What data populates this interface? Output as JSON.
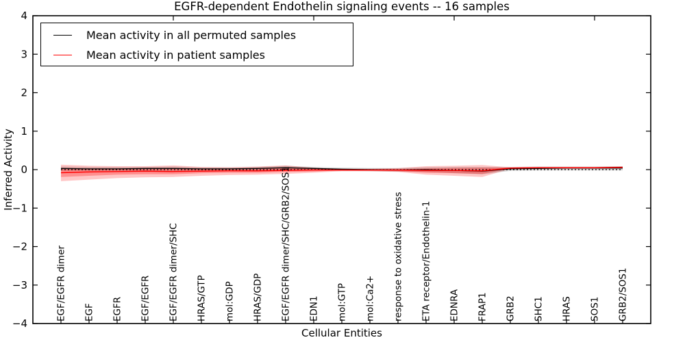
{
  "figure": {
    "title": "EGFR-dependent Endothelin signaling events -- 16 samples",
    "xlabel": "Cellular Entities",
    "ylabel": "Inferred Activity"
  },
  "legend": {
    "entries": [
      {
        "label": "Mean activity in all permuted samples",
        "color": "#000000"
      },
      {
        "label": "Mean activity in patient samples",
        "color": "#ff0000"
      }
    ]
  },
  "chart_data": {
    "type": "line",
    "title": "EGFR-dependent Endothelin signaling events -- 16 samples",
    "xlabel": "Cellular Entities",
    "ylabel": "Inferred Activity",
    "ylim": [
      -4,
      4
    ],
    "ytick_labels": [
      "4",
      "3",
      "2",
      "1",
      "0",
      "−1",
      "−2",
      "−3",
      "−4"
    ],
    "ytick_values": [
      4,
      3,
      2,
      1,
      0,
      -1,
      -2,
      -3,
      -4
    ],
    "grid": false,
    "legend_position": "upper left",
    "zero_line": {
      "style": "dotted",
      "color": "#000000",
      "y": 0
    },
    "top_axis_tick_positions": [
      4,
      9,
      14,
      19
    ],
    "categories": [
      "EGF/EGFR dimer",
      "EGF",
      "EGFR",
      "EGF/EGFR",
      "EGF/EGFR dimer/SHC",
      "HRAS/GTP",
      "mol:GDP",
      "HRAS/GDP",
      "EGF/EGFR dimer/SHC/GRB2/SOS1",
      "EDN1",
      "mol:GTP",
      "mol:Ca2+",
      "response to oxidative stress",
      "ETA receptor/Endothelin-1",
      "EDNRA",
      "FRAP1",
      "GRB2",
      "SHC1",
      "HRAS",
      "SOS1",
      "GRB2/SOS1"
    ],
    "series": [
      {
        "name": "Mean activity in all permuted samples",
        "color": "#000000",
        "values": [
          0.03,
          0.02,
          0.02,
          0.03,
          0.03,
          0.02,
          0.02,
          0.03,
          0.05,
          0.03,
          0.01,
          0.0,
          -0.01,
          0.0,
          -0.02,
          -0.04,
          0.02,
          0.03,
          0.04,
          0.04,
          0.04
        ]
      },
      {
        "name": "Mean activity in patient samples",
        "color": "#ff0000",
        "values": [
          -0.08,
          -0.06,
          -0.05,
          -0.04,
          -0.05,
          -0.04,
          -0.03,
          -0.03,
          -0.02,
          -0.01,
          -0.01,
          -0.01,
          -0.01,
          -0.02,
          -0.02,
          -0.03,
          0.04,
          0.05,
          0.05,
          0.05,
          0.06
        ]
      }
    ],
    "bands": [
      {
        "name": "permuted-spread",
        "color": "#9e9e9e",
        "opacity": 0.45,
        "upper": [
          0.08,
          0.07,
          0.07,
          0.07,
          0.08,
          0.06,
          0.06,
          0.07,
          0.1,
          0.07,
          0.05,
          0.04,
          0.04,
          0.06,
          0.07,
          0.07,
          0.07,
          0.08,
          0.08,
          0.08,
          0.09
        ],
        "lower": [
          -0.03,
          -0.03,
          -0.03,
          -0.03,
          -0.03,
          -0.03,
          -0.03,
          -0.02,
          -0.02,
          -0.02,
          -0.03,
          -0.04,
          -0.05,
          -0.06,
          -0.09,
          -0.12,
          -0.03,
          -0.02,
          -0.02,
          -0.02,
          -0.02
        ]
      },
      {
        "name": "patient-spread-outer",
        "color": "#ff0000",
        "opacity": 0.22,
        "upper": [
          0.13,
          0.1,
          0.09,
          0.09,
          0.11,
          0.07,
          0.06,
          0.08,
          0.11,
          0.05,
          0.02,
          0.02,
          0.04,
          0.09,
          0.1,
          0.12,
          0.06,
          0.07,
          0.07,
          0.07,
          0.08
        ],
        "lower": [
          -0.3,
          -0.26,
          -0.22,
          -0.2,
          -0.19,
          -0.16,
          -0.14,
          -0.13,
          -0.11,
          -0.08,
          -0.04,
          -0.04,
          -0.06,
          -0.13,
          -0.16,
          -0.19,
          0.02,
          0.03,
          0.03,
          0.03,
          0.04
        ]
      },
      {
        "name": "patient-spread-inner",
        "color": "#ff0000",
        "opacity": 0.28,
        "upper": [
          0.03,
          0.02,
          0.02,
          0.02,
          0.03,
          0.02,
          0.02,
          0.03,
          0.05,
          0.02,
          0.01,
          0.01,
          0.01,
          0.03,
          0.04,
          0.05,
          0.05,
          0.06,
          0.06,
          0.06,
          0.07
        ],
        "lower": [
          -0.19,
          -0.16,
          -0.13,
          -0.12,
          -0.12,
          -0.09,
          -0.08,
          -0.08,
          -0.06,
          -0.05,
          -0.02,
          -0.02,
          -0.04,
          -0.08,
          -0.09,
          -0.11,
          0.03,
          0.04,
          0.04,
          0.04,
          0.05
        ]
      }
    ]
  }
}
